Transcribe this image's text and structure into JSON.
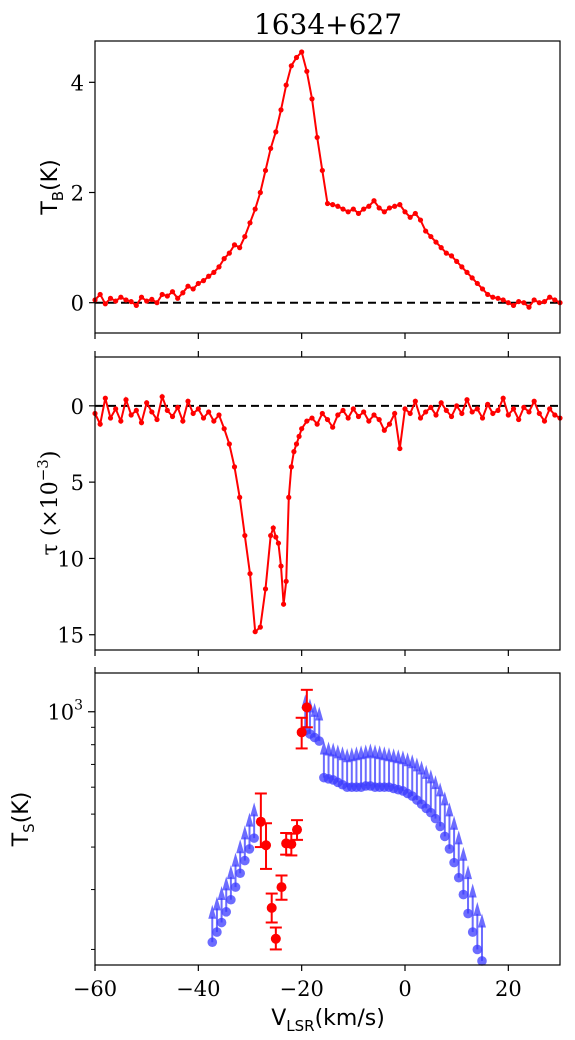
{
  "chart_data": [
    {
      "type": "line",
      "title": "1634+627",
      "ylabel": "T_B(K)",
      "ylabel_main": "T",
      "ylabel_sub": "B",
      "ylabel_unit": "(K)",
      "xlim": [
        -60,
        30
      ],
      "ylim": [
        -0.55,
        4.75
      ],
      "y_ticks": [
        0,
        2,
        4
      ],
      "y_tick_labels": [
        "0",
        "2",
        "4"
      ],
      "x_ticks": [
        -60,
        -40,
        -20,
        0,
        20
      ],
      "reference_line": 0,
      "color": "#ff0000",
      "x": [
        -60,
        -59,
        -58,
        -57,
        -56,
        -55,
        -54,
        -53,
        -52,
        -51,
        -50,
        -49,
        -48,
        -47,
        -46,
        -45,
        -44,
        -43,
        -42,
        -41,
        -40,
        -39,
        -38,
        -37,
        -36,
        -35,
        -34,
        -33,
        -32,
        -31,
        -30,
        -29,
        -28,
        -27,
        -26,
        -25,
        -24,
        -23,
        -22,
        -21,
        -20,
        -19,
        -18,
        -17,
        -16,
        -15,
        -14,
        -13,
        -12,
        -11,
        -10,
        -9,
        -8,
        -7,
        -6,
        -5,
        -4,
        -3,
        -2,
        -1,
        0,
        1,
        2,
        3,
        4,
        5,
        6,
        7,
        8,
        9,
        10,
        11,
        12,
        13,
        14,
        15,
        16,
        17,
        18,
        19,
        20,
        21,
        22,
        23,
        24,
        25,
        26,
        27,
        28,
        29,
        30
      ],
      "y": [
        0.05,
        0.15,
        -0.02,
        0.08,
        0.03,
        0.1,
        0.05,
        0.02,
        -0.05,
        0.1,
        0.03,
        0.06,
        0.0,
        0.15,
        0.12,
        0.2,
        0.08,
        0.18,
        0.3,
        0.25,
        0.35,
        0.4,
        0.48,
        0.55,
        0.65,
        0.8,
        0.9,
        1.05,
        1.0,
        1.2,
        1.45,
        1.7,
        2.0,
        2.4,
        2.8,
        3.1,
        3.5,
        3.95,
        4.3,
        4.45,
        4.55,
        4.2,
        3.7,
        3.0,
        2.4,
        1.8,
        1.78,
        1.75,
        1.7,
        1.65,
        1.7,
        1.62,
        1.7,
        1.75,
        1.85,
        1.72,
        1.65,
        1.72,
        1.75,
        1.78,
        1.65,
        1.55,
        1.62,
        1.5,
        1.3,
        1.2,
        1.1,
        1.0,
        0.9,
        0.85,
        0.75,
        0.65,
        0.55,
        0.45,
        0.35,
        0.25,
        0.15,
        0.1,
        0.08,
        0.05,
        0.0,
        -0.05,
        0.02,
        0.0,
        -0.08,
        0.05,
        0.0,
        0.02,
        0.1,
        0.05,
        0.0
      ]
    },
    {
      "type": "line",
      "ylabel": "τ (×10⁻³)",
      "ylabel_text": "τ (×10",
      "ylabel_exp": "−3",
      "ylabel_close": ")",
      "xlim": [
        -60,
        30
      ],
      "ylim": [
        -3.2,
        16
      ],
      "y_inverted": true,
      "y_ticks": [
        0,
        5,
        10,
        15
      ],
      "y_tick_labels": [
        "0",
        "5",
        "10",
        "15"
      ],
      "x_ticks": [
        -60,
        -40,
        -20,
        0,
        20
      ],
      "reference_line": 0,
      "color": "#ff0000",
      "x": [
        -60,
        -59,
        -58,
        -57,
        -56,
        -55,
        -54,
        -53,
        -52,
        -51,
        -50,
        -49,
        -48,
        -47,
        -46,
        -45,
        -44,
        -43,
        -42,
        -41,
        -40,
        -39,
        -38,
        -37,
        -36,
        -35,
        -34,
        -33,
        -32,
        -31,
        -30,
        -29,
        -28,
        -27,
        -26,
        -25.5,
        -25,
        -24.5,
        -24,
        -23.5,
        -23,
        -22.5,
        -22,
        -21.5,
        -21,
        -20.5,
        -20,
        -19,
        -18,
        -17,
        -16,
        -15,
        -14,
        -13,
        -12,
        -11,
        -10,
        -9,
        -8,
        -7,
        -6,
        -5,
        -4,
        -3,
        -2,
        -1,
        0,
        1,
        2,
        3,
        4,
        5,
        6,
        7,
        8,
        9,
        10,
        11,
        12,
        13,
        14,
        15,
        16,
        17,
        18,
        19,
        20,
        21,
        22,
        23,
        24,
        25,
        26,
        27,
        28,
        29,
        30
      ],
      "y": [
        0.5,
        1.2,
        -0.5,
        0.8,
        0.2,
        1.0,
        -0.4,
        0.6,
        0.3,
        1.1,
        -0.2,
        0.4,
        0.9,
        -0.6,
        0.3,
        0.7,
        0.1,
        1.0,
        -0.3,
        0.5,
        0.2,
        0.8,
        0.4,
        1.0,
        0.6,
        1.5,
        2.5,
        4.0,
        6.0,
        8.5,
        11.0,
        14.8,
        14.5,
        12.0,
        8.5,
        8.0,
        8.6,
        9.0,
        10.5,
        13.0,
        11.5,
        6.0,
        4.0,
        3.0,
        2.5,
        2.0,
        1.5,
        1.0,
        0.8,
        1.2,
        0.5,
        0.9,
        1.4,
        0.6,
        0.3,
        0.8,
        0.2,
        0.7,
        0.4,
        1.0,
        0.6,
        0.9,
        1.6,
        1.2,
        0.5,
        2.8,
        0.2,
        0.5,
        -0.3,
        0.8,
        0.4,
        0.1,
        0.6,
        -0.2,
        0.3,
        0.7,
        0.0,
        0.5,
        -0.4,
        0.4,
        0.2,
        0.8,
        -0.1,
        0.5,
        0.3,
        -0.5,
        0.6,
        0.2,
        0.9,
        0.1,
        0.4,
        -0.3,
        0.5,
        1.0,
        0.2,
        0.6,
        0.8
      ]
    },
    {
      "type": "scatter",
      "ylabel": "T_S(K)",
      "ylabel_main": "T",
      "ylabel_sub": "S",
      "ylabel_unit": "(K)",
      "xlabel": "V_LSR(km/s)",
      "xlabel_main": "V",
      "xlabel_sub": "LSR",
      "xlabel_unit": "(km/s)",
      "xlim": [
        -60,
        30
      ],
      "y_scale": "log",
      "ylim": [
        180,
        1300
      ],
      "y_ticks": [
        1000
      ],
      "y_tick_base": "10",
      "y_tick_exp": "3",
      "x_ticks": [
        -60,
        -40,
        -20,
        0,
        20
      ],
      "x_tick_labels": [
        "−60",
        "−40",
        "−20",
        "0",
        "20"
      ],
      "series": [
        {
          "marker": "lower-limit arrows",
          "color": "#3b3bff",
          "points": [
            {
              "x": -37.3,
              "y": 210,
              "up": 260
            },
            {
              "x": -36.4,
              "y": 225,
              "up": 275
            },
            {
              "x": -35.5,
              "y": 240,
              "up": 295
            },
            {
              "x": -34.6,
              "y": 258,
              "up": 315
            },
            {
              "x": -33.7,
              "y": 280,
              "up": 340
            },
            {
              "x": -32.8,
              "y": 305,
              "up": 370
            },
            {
              "x": -31.9,
              "y": 335,
              "up": 405
            },
            {
              "x": -31.0,
              "y": 365,
              "up": 445
            },
            {
              "x": -30.1,
              "y": 395,
              "up": 485
            },
            {
              "x": -29.2,
              "y": 425,
              "up": 520
            },
            {
              "x": -19.3,
              "y": 880,
              "up": 1080
            },
            {
              "x": -18.4,
              "y": 860,
              "up": 1050
            },
            {
              "x": -17.5,
              "y": 840,
              "up": 1020
            },
            {
              "x": -16.6,
              "y": 820,
              "up": 995
            },
            {
              "x": -15.7,
              "y": 640,
              "up": 790
            },
            {
              "x": -14.8,
              "y": 635,
              "up": 785
            },
            {
              "x": -13.9,
              "y": 630,
              "up": 780
            },
            {
              "x": -13.0,
              "y": 620,
              "up": 770
            },
            {
              "x": -12.1,
              "y": 610,
              "up": 760
            },
            {
              "x": -11.2,
              "y": 600,
              "up": 750
            },
            {
              "x": -10.3,
              "y": 600,
              "up": 755
            },
            {
              "x": -9.4,
              "y": 600,
              "up": 760
            },
            {
              "x": -8.5,
              "y": 600,
              "up": 765
            },
            {
              "x": -7.6,
              "y": 605,
              "up": 770
            },
            {
              "x": -6.7,
              "y": 605,
              "up": 775
            },
            {
              "x": -5.8,
              "y": 600,
              "up": 770
            },
            {
              "x": -4.9,
              "y": 600,
              "up": 765
            },
            {
              "x": -4.0,
              "y": 600,
              "up": 760
            },
            {
              "x": -3.1,
              "y": 600,
              "up": 755
            },
            {
              "x": -2.2,
              "y": 595,
              "up": 750
            },
            {
              "x": -1.3,
              "y": 590,
              "up": 745
            },
            {
              "x": -0.4,
              "y": 585,
              "up": 740
            },
            {
              "x": 0.5,
              "y": 575,
              "up": 730
            },
            {
              "x": 1.4,
              "y": 565,
              "up": 720
            },
            {
              "x": 2.3,
              "y": 550,
              "up": 705
            },
            {
              "x": 3.2,
              "y": 535,
              "up": 690
            },
            {
              "x": 4.1,
              "y": 520,
              "up": 670
            },
            {
              "x": 5.0,
              "y": 505,
              "up": 650
            },
            {
              "x": 5.9,
              "y": 485,
              "up": 625
            },
            {
              "x": 6.8,
              "y": 460,
              "up": 595
            },
            {
              "x": 7.7,
              "y": 430,
              "up": 560
            },
            {
              "x": 8.6,
              "y": 395,
              "up": 520
            },
            {
              "x": 9.5,
              "y": 360,
              "up": 475
            },
            {
              "x": 10.4,
              "y": 325,
              "up": 430
            },
            {
              "x": 11.3,
              "y": 290,
              "up": 385
            },
            {
              "x": 12.2,
              "y": 255,
              "up": 340
            },
            {
              "x": 13.1,
              "y": 225,
              "up": 300
            },
            {
              "x": 14.0,
              "y": 200,
              "up": 265
            },
            {
              "x": 14.9,
              "y": 185,
              "up": 245
            }
          ]
        },
        {
          "marker": "error bars",
          "color": "#ff0000",
          "points": [
            {
              "x": -27.9,
              "y": 475,
              "lo": 400,
              "hi": 575
            },
            {
              "x": -26.9,
              "y": 405,
              "lo": 345,
              "hi": 470
            },
            {
              "x": -25.8,
              "y": 265,
              "lo": 240,
              "hi": 292
            },
            {
              "x": -25.0,
              "y": 215,
              "lo": 200,
              "hi": 232
            },
            {
              "x": -23.9,
              "y": 305,
              "lo": 280,
              "hi": 330
            },
            {
              "x": -23.0,
              "y": 410,
              "lo": 380,
              "hi": 440
            },
            {
              "x": -22.0,
              "y": 408,
              "lo": 378,
              "hi": 438
            },
            {
              "x": -20.9,
              "y": 450,
              "lo": 420,
              "hi": 480
            },
            {
              "x": -20.0,
              "y": 870,
              "lo": 780,
              "hi": 960
            },
            {
              "x": -19.0,
              "y": 1030,
              "lo": 900,
              "hi": 1160
            }
          ]
        }
      ]
    }
  ]
}
